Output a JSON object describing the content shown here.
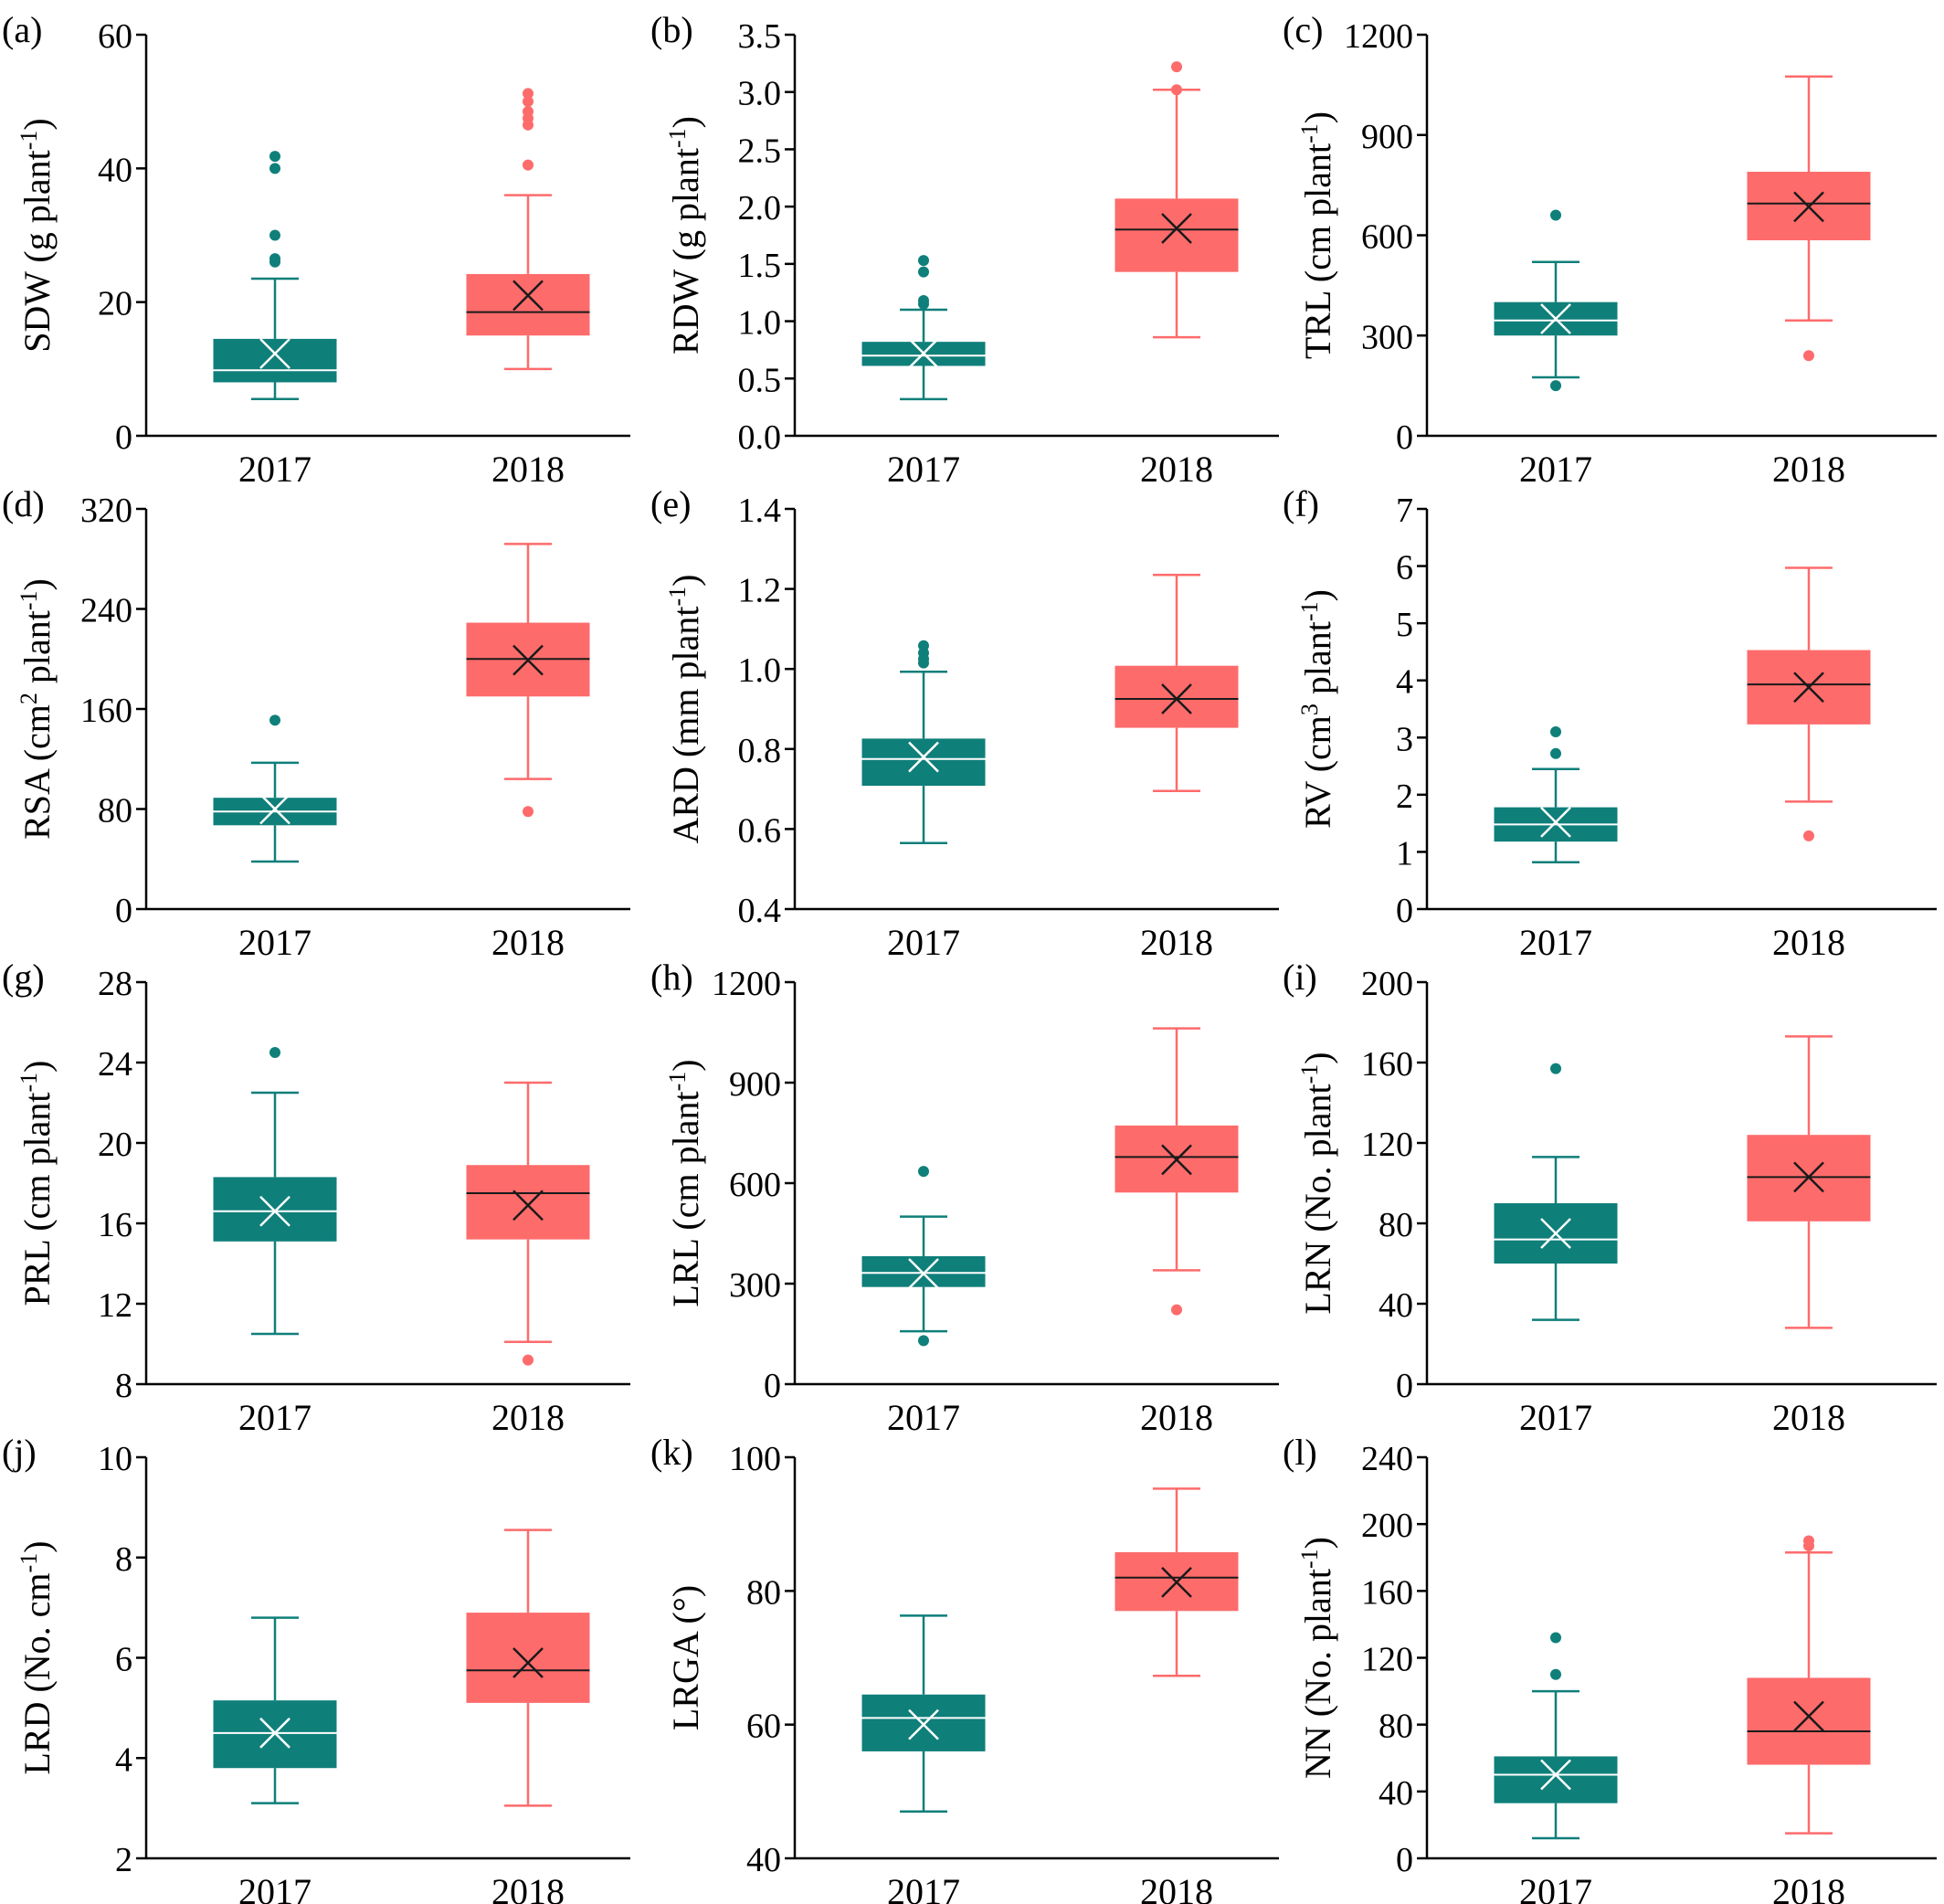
{
  "colors": {
    "y2017": "#0f7f7a",
    "y2018": "#fe6b6b",
    "axis": "#000000"
  },
  "chart_data": [
    {
      "panel": "(a)",
      "type": "box",
      "categories": [
        "2017",
        "2018"
      ],
      "ylabel": "SDW (g plant",
      "ylabel_sup": "-1",
      "ylabel_tail": ")",
      "ylim": [
        0,
        60
      ],
      "yticks": [
        0,
        20,
        40,
        60
      ],
      "boxes": [
        {
          "year": "2017",
          "whisker_low": 5.5,
          "q1": 8,
          "median": 9.8,
          "q3": 14.5,
          "whisker_high": 23.5,
          "mean": 12.3,
          "outliers": [
            26,
            26.5,
            30,
            40,
            41.8
          ]
        },
        {
          "year": "2018",
          "whisker_low": 10,
          "q1": 15,
          "median": 18.5,
          "q3": 24.2,
          "whisker_high": 36,
          "mean": 21,
          "outliers": [
            40.5,
            46.5,
            47.5,
            48.5,
            50,
            51.2
          ]
        }
      ]
    },
    {
      "panel": "(b)",
      "type": "box",
      "categories": [
        "2017",
        "2018"
      ],
      "ylabel": "RDW (g plant",
      "ylabel_sup": "-1",
      "ylabel_tail": ")",
      "ylim": [
        0,
        3.5
      ],
      "yticks": [
        "0.0",
        "0.5",
        "1.0",
        "1.5",
        "2.0",
        "2.5",
        "3.0",
        "3.5"
      ],
      "boxes": [
        {
          "year": "2017",
          "whisker_low": 0.32,
          "q1": 0.61,
          "median": 0.7,
          "q3": 0.82,
          "whisker_high": 1.1,
          "mean": 0.72,
          "outliers": [
            1.15,
            1.18,
            1.43,
            1.53
          ]
        },
        {
          "year": "2018",
          "whisker_low": 0.86,
          "q1": 1.43,
          "median": 1.8,
          "q3": 2.07,
          "whisker_high": 3.02,
          "mean": 1.81,
          "outliers": [
            3.02,
            3.22
          ]
        }
      ]
    },
    {
      "panel": "(c)",
      "type": "box",
      "categories": [
        "2017",
        "2018"
      ],
      "ylabel": "TRL (cm plant",
      "ylabel_sup": "-1",
      "ylabel_tail": ")",
      "ylim": [
        0,
        1200
      ],
      "yticks": [
        0,
        300,
        600,
        900,
        1200
      ],
      "boxes": [
        {
          "year": "2017",
          "whisker_low": 175,
          "q1": 300,
          "median": 345,
          "q3": 400,
          "whisker_high": 520,
          "mean": 350,
          "outliers": [
            150,
            660
          ]
        },
        {
          "year": "2018",
          "whisker_low": 345,
          "q1": 585,
          "median": 695,
          "q3": 790,
          "whisker_high": 1075,
          "mean": 685,
          "outliers": [
            240
          ]
        }
      ]
    },
    {
      "panel": "(d)",
      "type": "box",
      "categories": [
        "2017",
        "2018"
      ],
      "ylabel": "RSA (cm",
      "ylabel_sup": "2",
      "ylabel_tail": " plant",
      "ylabel_sup2": "-1",
      "ylabel_tail2": ")",
      "ylim": [
        0,
        320
      ],
      "yticks": [
        0,
        80,
        160,
        240,
        320
      ],
      "boxes": [
        {
          "year": "2017",
          "whisker_low": 38,
          "q1": 67,
          "median": 78,
          "q3": 89,
          "whisker_high": 117,
          "mean": 80,
          "outliers": [
            151
          ]
        },
        {
          "year": "2018",
          "whisker_low": 104,
          "q1": 170,
          "median": 200,
          "q3": 229,
          "whisker_high": 292,
          "mean": 199,
          "outliers": [
            78
          ]
        }
      ]
    },
    {
      "panel": "(e)",
      "type": "box",
      "categories": [
        "2017",
        "2018"
      ],
      "ylabel": "ARD (mm plant",
      "ylabel_sup": "-1",
      "ylabel_tail": ")",
      "ylim": [
        0.4,
        1.4
      ],
      "yticks": [
        "0.4",
        "0.6",
        "0.8",
        "1.0",
        "1.2",
        "1.4"
      ],
      "boxes": [
        {
          "year": "2017",
          "whisker_low": 0.565,
          "q1": 0.708,
          "median": 0.775,
          "q3": 0.826,
          "whisker_high": 0.993,
          "mean": 0.78,
          "outliers": [
            1.015,
            1.025,
            1.04,
            1.058
          ]
        },
        {
          "year": "2018",
          "whisker_low": 0.695,
          "q1": 0.853,
          "median": 0.925,
          "q3": 1.008,
          "whisker_high": 1.235,
          "mean": 0.925,
          "outliers": []
        }
      ]
    },
    {
      "panel": "(f)",
      "type": "box",
      "categories": [
        "2017",
        "2018"
      ],
      "ylabel": "RV (cm",
      "ylabel_sup": "3",
      "ylabel_tail": " plant",
      "ylabel_sup2": "-1",
      "ylabel_tail2": ")",
      "ylim": [
        0,
        7
      ],
      "yticks": [
        0,
        1,
        2,
        3,
        4,
        5,
        6,
        7
      ],
      "boxes": [
        {
          "year": "2017",
          "whisker_low": 0.82,
          "q1": 1.18,
          "median": 1.48,
          "q3": 1.78,
          "whisker_high": 2.45,
          "mean": 1.52,
          "outliers": [
            2.72,
            3.1
          ]
        },
        {
          "year": "2018",
          "whisker_low": 1.88,
          "q1": 3.23,
          "median": 3.93,
          "q3": 4.53,
          "whisker_high": 5.97,
          "mean": 3.88,
          "outliers": [
            1.28
          ]
        }
      ]
    },
    {
      "panel": "(g)",
      "type": "box",
      "categories": [
        "2017",
        "2018"
      ],
      "ylabel": "PRL (cm plant",
      "ylabel_sup": "-1",
      "ylabel_tail": ")",
      "ylim": [
        8,
        28
      ],
      "yticks": [
        8,
        12,
        16,
        20,
        24,
        28
      ],
      "boxes": [
        {
          "year": "2017",
          "whisker_low": 10.5,
          "q1": 15.1,
          "median": 16.6,
          "q3": 18.3,
          "whisker_high": 22.5,
          "mean": 16.6,
          "outliers": [
            24.5
          ]
        },
        {
          "year": "2018",
          "whisker_low": 10.1,
          "q1": 15.2,
          "median": 17.5,
          "q3": 18.9,
          "whisker_high": 23,
          "mean": 16.9,
          "outliers": [
            9.2
          ]
        }
      ]
    },
    {
      "panel": "(h)",
      "type": "box",
      "categories": [
        "2017",
        "2018"
      ],
      "ylabel": "LRL (cm plant",
      "ylabel_sup": "-1",
      "ylabel_tail": ")",
      "ylim": [
        0,
        1200
      ],
      "yticks": [
        0,
        300,
        600,
        900,
        1200
      ],
      "boxes": [
        {
          "year": "2017",
          "whisker_low": 158,
          "q1": 290,
          "median": 332,
          "q3": 382,
          "whisker_high": 500,
          "mean": 330,
          "outliers": [
            130,
            635
          ]
        },
        {
          "year": "2018",
          "whisker_low": 340,
          "q1": 572,
          "median": 678,
          "q3": 772,
          "whisker_high": 1062,
          "mean": 670,
          "outliers": [
            222
          ]
        }
      ]
    },
    {
      "panel": "(i)",
      "type": "box",
      "categories": [
        "2017",
        "2018"
      ],
      "ylabel": "LRN (No. plant",
      "ylabel_sup": "-1",
      "ylabel_tail": ")",
      "ylim": [
        0,
        200
      ],
      "yticks": [
        0,
        40,
        80,
        120,
        160,
        200
      ],
      "boxes": [
        {
          "year": "2017",
          "whisker_low": 32,
          "q1": 60,
          "median": 72,
          "q3": 90,
          "whisker_high": 113,
          "mean": 75,
          "outliers": [
            157
          ]
        },
        {
          "year": "2018",
          "whisker_low": 28,
          "q1": 81,
          "median": 103,
          "q3": 124,
          "whisker_high": 173,
          "mean": 103,
          "outliers": []
        }
      ]
    },
    {
      "panel": "(j)",
      "type": "box",
      "categories": [
        "2017",
        "2018"
      ],
      "ylabel": "LRD (No. cm",
      "ylabel_sup": "-1",
      "ylabel_tail": ")",
      "ylim": [
        2,
        10
      ],
      "yticks": [
        2,
        4,
        6,
        8,
        10
      ],
      "boxes": [
        {
          "year": "2017",
          "whisker_low": 3.1,
          "q1": 3.8,
          "median": 4.5,
          "q3": 5.15,
          "whisker_high": 6.8,
          "mean": 4.5,
          "outliers": []
        },
        {
          "year": "2018",
          "whisker_low": 3.05,
          "q1": 5.1,
          "median": 5.75,
          "q3": 6.9,
          "whisker_high": 8.55,
          "mean": 5.9,
          "outliers": []
        }
      ]
    },
    {
      "panel": "(k)",
      "type": "box",
      "categories": [
        "2017",
        "2018"
      ],
      "ylabel": "LRGA (°)",
      "ylabel_sup": "",
      "ylabel_tail": "",
      "ylim": [
        40,
        100
      ],
      "yticks": [
        40,
        60,
        80,
        100
      ],
      "boxes": [
        {
          "year": "2017",
          "whisker_low": 47,
          "q1": 56,
          "median": 61,
          "q3": 64.5,
          "whisker_high": 76.3,
          "mean": 60,
          "outliers": []
        },
        {
          "year": "2018",
          "whisker_low": 67.3,
          "q1": 77,
          "median": 82,
          "q3": 85.8,
          "whisker_high": 95.3,
          "mean": 81.3,
          "outliers": []
        }
      ]
    },
    {
      "panel": "(l)",
      "type": "box",
      "categories": [
        "2017",
        "2018"
      ],
      "ylabel": "NN (No. plant",
      "ylabel_sup": "-1",
      "ylabel_tail": ")",
      "ylim": [
        0,
        240
      ],
      "yticks": [
        0,
        40,
        80,
        120,
        160,
        200,
        240
      ],
      "boxes": [
        {
          "year": "2017",
          "whisker_low": 12,
          "q1": 33,
          "median": 50,
          "q3": 61,
          "whisker_high": 100,
          "mean": 50,
          "outliers": [
            110,
            132
          ]
        },
        {
          "year": "2018",
          "whisker_low": 15,
          "q1": 56,
          "median": 76,
          "q3": 108,
          "whisker_high": 183,
          "mean": 85,
          "outliers": [
            187,
            190
          ]
        }
      ]
    }
  ]
}
